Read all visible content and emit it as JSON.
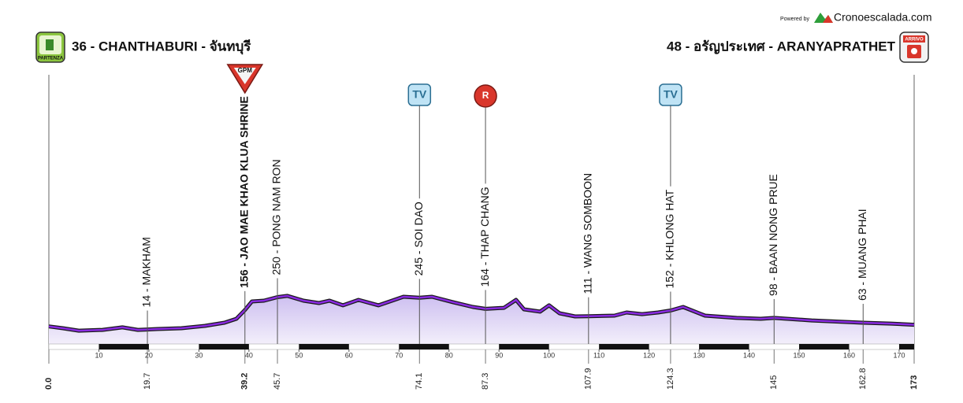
{
  "brand": {
    "powered_by": "Powered by",
    "site": "Cronoescalada.com"
  },
  "chart_data": {
    "type": "area",
    "color": "#8a2be2",
    "fill": "#dcd2f2",
    "start": {
      "label": "36 - CHANTHABURI - จันทบุรี",
      "altitude": 36,
      "km": {
        "value": 0,
        "label": "0.0"
      },
      "badge": "PARTENZA"
    },
    "finish": {
      "label": "48 - อรัญประเทศ - ARANYAPRATHET",
      "altitude": 48,
      "km": 173,
      "badge": "ARRIVO"
    },
    "xlim": [
      0,
      173
    ],
    "ylim": [
      -92,
      1873
    ],
    "xticks": [
      10,
      20,
      30,
      40,
      50,
      60,
      70,
      80,
      90,
      100,
      110,
      120,
      130,
      140,
      150,
      160,
      170
    ],
    "profile": {
      "x": [
        0,
        2.8,
        6,
        10.7,
        14.7,
        17.8,
        19.7,
        21.7,
        26.5,
        31.2,
        35.1,
        37.5,
        39.2,
        40.6,
        43,
        45.7,
        47.7,
        50.9,
        54,
        56.1,
        58.8,
        61.9,
        65.9,
        70.9,
        74.1,
        76.6,
        80.8,
        84.8,
        87.3,
        91,
        93.4,
        95,
        98.2,
        100,
        102.1,
        105.2,
        107.9,
        113.1,
        115.5,
        118.6,
        121.8,
        124.3,
        126.8,
        131.2,
        137.5,
        142.3,
        145,
        152.5,
        162.8,
        168.3,
        173
      ],
      "values": [
        36,
        23,
        5,
        11,
        29,
        11,
        14,
        17,
        23,
        40,
        63,
        92,
        156,
        218,
        224,
        250,
        259,
        224,
        207,
        224,
        190,
        230,
        190,
        253,
        245,
        253,
        213,
        178,
        164,
        172,
        230,
        161,
        144,
        190,
        132,
        109,
        111,
        115,
        138,
        126,
        138,
        152,
        178,
        115,
        98,
        92,
        98,
        80,
        63,
        57,
        48
      ]
    },
    "points": [
      {
        "label": "14 - MAKHAM",
        "altitude": 14,
        "km": 19.7
      },
      {
        "label": "156 - JAO MAE KHAO KLUA SHRINE",
        "altitude": 156,
        "km": 39.2,
        "highlight": true,
        "icon": "GPM"
      },
      {
        "label": "250 - PONG NAM RON",
        "altitude": 250,
        "km": 45.7
      },
      {
        "label": "245 - SOI DAO",
        "altitude": 245,
        "km": 74.1,
        "icon": "TV"
      },
      {
        "label": "164 - THAP CHANG",
        "altitude": 164,
        "km": 87.3,
        "icon": "R"
      },
      {
        "label": "111 - WANG SOMBOON",
        "altitude": 111,
        "km": 107.9
      },
      {
        "label": "152 - KHLONG HAT",
        "altitude": 152,
        "km": 124.3,
        "icon": "TV"
      },
      {
        "label": "98 - BAAN NONG PRUE",
        "altitude": 98,
        "km": 145
      },
      {
        "label": "63 - MUANG PHAI",
        "altitude": 63,
        "km": 162.8
      }
    ]
  }
}
